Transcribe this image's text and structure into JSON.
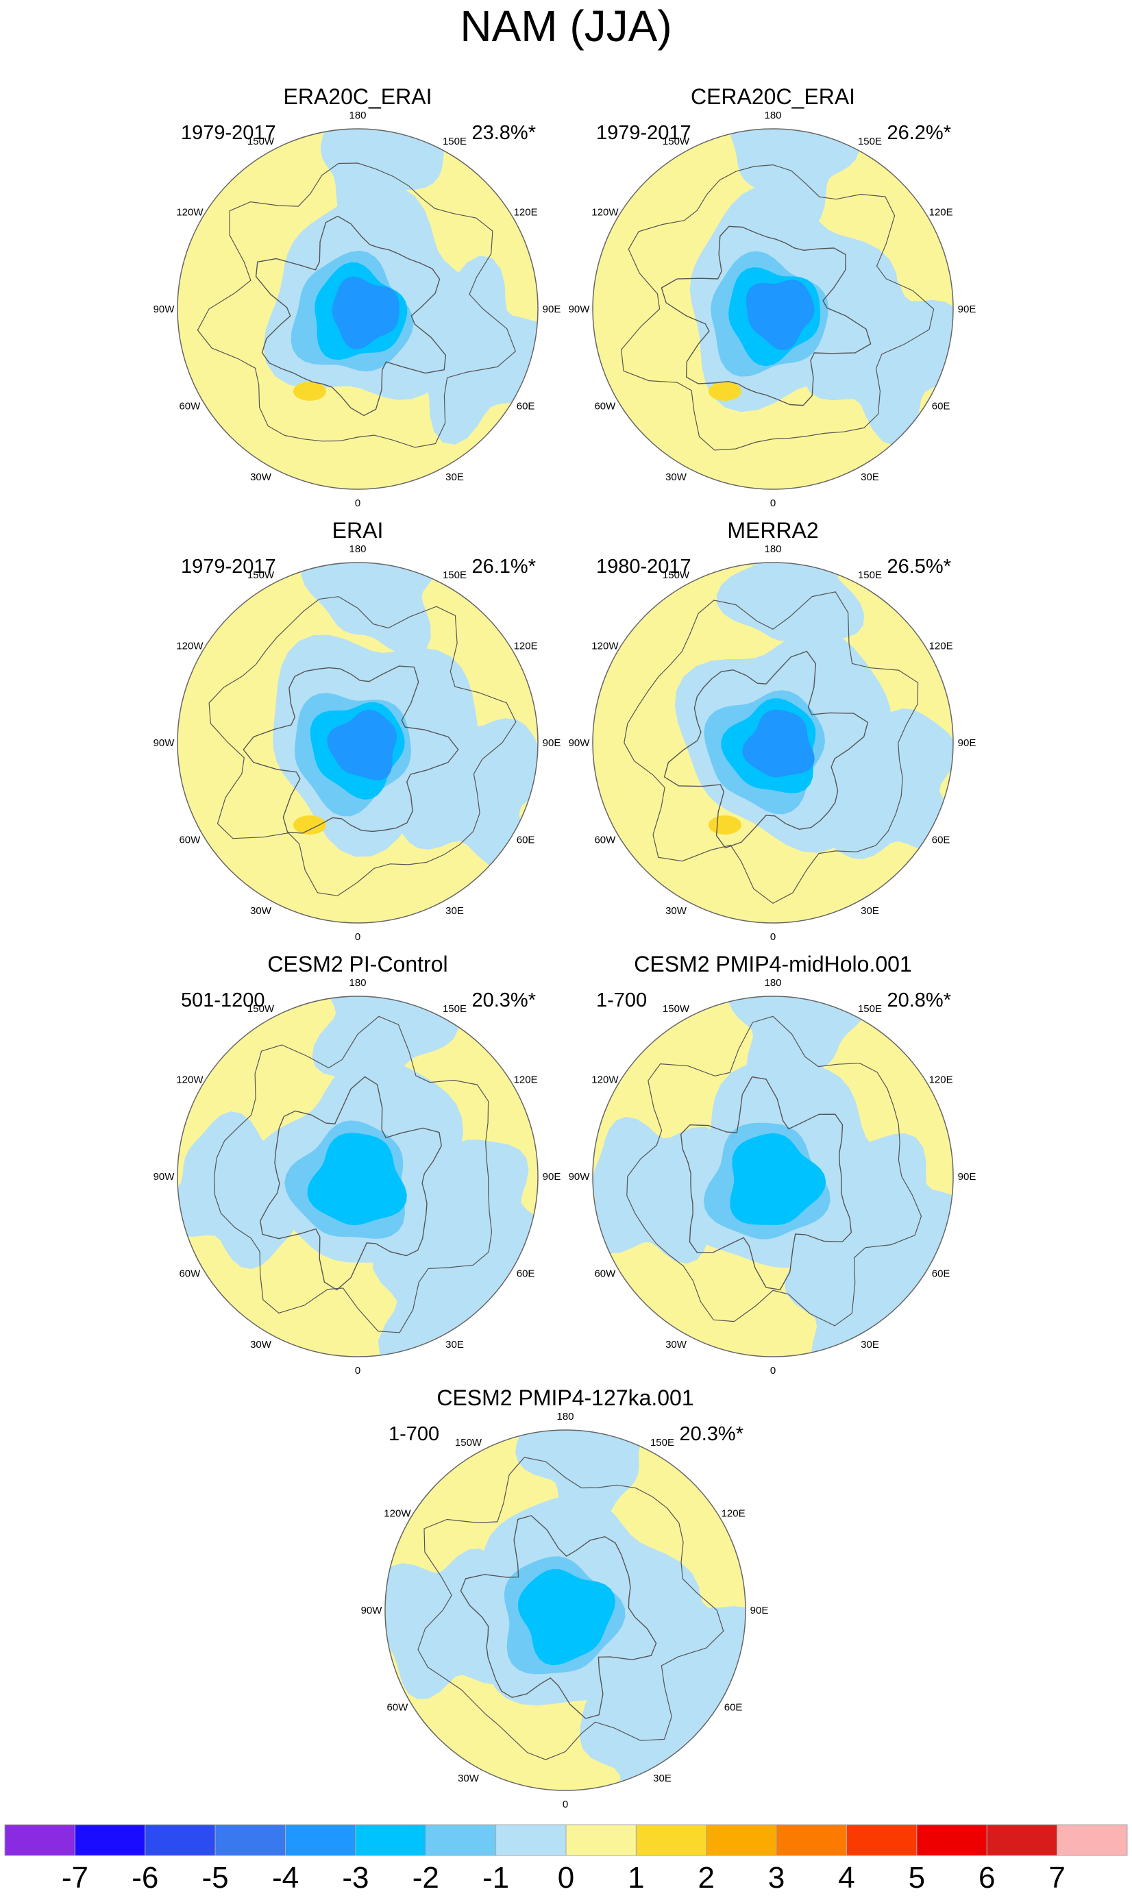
{
  "chart_data": {
    "type": "polar-contour-map",
    "title": "NAM (JJA)",
    "projection": "north-polar-stereographic",
    "longitude_labels": [
      "180",
      "150E",
      "120E",
      "90E",
      "60E",
      "30E",
      "0",
      "30W",
      "60W",
      "90W",
      "120W",
      "150W"
    ],
    "panels": [
      {
        "title": "ERA20C_ERAI",
        "period": "1979-2017",
        "variance_explained": "23.8%*",
        "min_value": -4
      },
      {
        "title": "CERA20C_ERAI",
        "period": "1979-2017",
        "variance_explained": "26.2%*",
        "min_value": -4
      },
      {
        "title": "ERAI",
        "period": "1979-2017",
        "variance_explained": "26.1%*",
        "min_value": -4
      },
      {
        "title": "MERRA2",
        "period": "1980-2017",
        "variance_explained": "26.5%*",
        "min_value": -4
      },
      {
        "title": "CESM2 PI-Control",
        "period": "501-1200",
        "variance_explained": "20.3%*",
        "min_value": -3
      },
      {
        "title": "CESM2 PMIP4-midHolo.001",
        "period": "1-700",
        "variance_explained": "20.8%*",
        "min_value": -3
      },
      {
        "title": "CESM2 PMIP4-127ka.001",
        "period": "1-700",
        "variance_explained": "20.3%*",
        "min_value": -3
      }
    ],
    "colorbar": {
      "ticks": [
        "-7",
        "-6",
        "-5",
        "-4",
        "-3",
        "-2",
        "-1",
        "0",
        "1",
        "2",
        "3",
        "4",
        "5",
        "6",
        "7"
      ],
      "colors": [
        "#8a2be2",
        "#1a0dff",
        "#2a4cf0",
        "#3a78f0",
        "#1e97ff",
        "#00c2ff",
        "#6fcbf5",
        "#b6e0f5",
        "#fbf59a",
        "#fbd92b",
        "#fbab00",
        "#fb7a00",
        "#fb3a00",
        "#ef0000",
        "#d81b1b",
        "#fbb3b3"
      ]
    }
  }
}
